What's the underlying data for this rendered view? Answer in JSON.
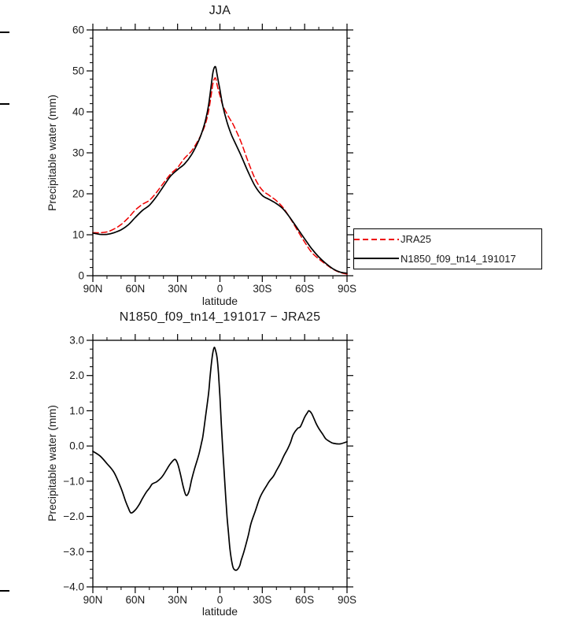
{
  "figure": {
    "background": "#ffffff",
    "text_color": "#1a1a1a",
    "axis_color": "#000000"
  },
  "chart_data": [
    {
      "type": "line",
      "title": "JJA",
      "xlabel": "latitude",
      "ylabel": "Precipitable water (mm)",
      "xlim": [
        90,
        -90
      ],
      "ylim": [
        0,
        60
      ],
      "grid": false,
      "xtick_values": [
        90,
        60,
        30,
        0,
        -30,
        -60,
        -90
      ],
      "xtick_labels": [
        "90N",
        "60N",
        "30N",
        "0",
        "30S",
        "60S",
        "90S"
      ],
      "ytick_values": [
        0,
        10,
        20,
        30,
        40,
        50,
        60
      ],
      "ytick_labels": [
        "0",
        "10",
        "20",
        "30",
        "40",
        "50",
        "60"
      ],
      "x_minor_step": 10,
      "y_minor_step": 2,
      "legend": {
        "position": "outside-right",
        "entries": [
          "JRA25",
          "N1850_f09_tn14_191017"
        ]
      },
      "series": [
        {
          "name": "JRA25",
          "color": "#ee0000",
          "style": "dashed",
          "points": [
            [
              90,
              10.5
            ],
            [
              85,
              10.5
            ],
            [
              80,
              10.7
            ],
            [
              75,
              11.4
            ],
            [
              70,
              12.5
            ],
            [
              65,
              14.1
            ],
            [
              60,
              16.0
            ],
            [
              55,
              17.4
            ],
            [
              50,
              18.4
            ],
            [
              45,
              20.3
            ],
            [
              40,
              22.6
            ],
            [
              35,
              24.8
            ],
            [
              30,
              26.4
            ],
            [
              25,
              28.7
            ],
            [
              20,
              30.5
            ],
            [
              15,
              33.3
            ],
            [
              12,
              35.5
            ],
            [
              10,
              37.4
            ],
            [
              8,
              40.2
            ],
            [
              6,
              44.5
            ],
            [
              5,
              46.8
            ],
            [
              4,
              48.0
            ],
            [
              3,
              48.2
            ],
            [
              2,
              46.6
            ],
            [
              1,
              45.2
            ],
            [
              0,
              44.0
            ],
            [
              -2,
              41.6
            ],
            [
              -5,
              39.5
            ],
            [
              -8,
              37.7
            ],
            [
              -10,
              36.5
            ],
            [
              -15,
              32.6
            ],
            [
              -20,
              27.8
            ],
            [
              -25,
              23.6
            ],
            [
              -30,
              20.9
            ],
            [
              -35,
              19.6
            ],
            [
              -40,
              18.3
            ],
            [
              -45,
              16.5
            ],
            [
              -50,
              13.9
            ],
            [
              -55,
              11.0
            ],
            [
              -60,
              8.2
            ],
            [
              -65,
              5.7
            ],
            [
              -70,
              4.1
            ],
            [
              -75,
              2.8
            ],
            [
              -80,
              1.6
            ],
            [
              -85,
              0.8
            ],
            [
              -90,
              0.4
            ]
          ]
        },
        {
          "name": "N1850_f09_tn14_191017",
          "color": "#000000",
          "style": "solid",
          "points": [
            [
              90,
              10.4
            ],
            [
              85,
              10.1
            ],
            [
              80,
              10.1
            ],
            [
              75,
              10.5
            ],
            [
              70,
              11.2
            ],
            [
              65,
              12.4
            ],
            [
              60,
              14.2
            ],
            [
              55,
              15.9
            ],
            [
              50,
              17.2
            ],
            [
              45,
              19.3
            ],
            [
              40,
              21.8
            ],
            [
              35,
              24.3
            ],
            [
              30,
              25.9
            ],
            [
              25,
              27.3
            ],
            [
              20,
              29.6
            ],
            [
              15,
              33.0
            ],
            [
              12,
              35.8
            ],
            [
              10,
              38.3
            ],
            [
              8,
              41.7
            ],
            [
              6,
              46.9
            ],
            [
              5,
              49.5
            ],
            [
              4,
              50.8
            ],
            [
              3,
              50.9
            ],
            [
              2,
              49.1
            ],
            [
              1,
              47.2
            ],
            [
              0,
              45.4
            ],
            [
              -2,
              41.5
            ],
            [
              -5,
              37.5
            ],
            [
              -8,
              34.5
            ],
            [
              -10,
              33.0
            ],
            [
              -15,
              29.3
            ],
            [
              -20,
              25.3
            ],
            [
              -25,
              21.8
            ],
            [
              -30,
              19.6
            ],
            [
              -35,
              18.6
            ],
            [
              -40,
              17.6
            ],
            [
              -45,
              16.2
            ],
            [
              -50,
              14.0
            ],
            [
              -55,
              11.5
            ],
            [
              -60,
              9.0
            ],
            [
              -65,
              6.6
            ],
            [
              -70,
              4.6
            ],
            [
              -75,
              3.0
            ],
            [
              -80,
              1.7
            ],
            [
              -85,
              0.9
            ],
            [
              -90,
              0.6
            ]
          ]
        }
      ]
    },
    {
      "type": "line",
      "title": "N1850_f09_tn14_191017 − JRA25",
      "xlabel": "latitude",
      "ylabel": "Precipitable water (mm)",
      "xlim": [
        90,
        -90
      ],
      "ylim": [
        -4.0,
        3.0
      ],
      "grid": false,
      "xtick_values": [
        90,
        60,
        30,
        0,
        -30,
        -60,
        -90
      ],
      "xtick_labels": [
        "90N",
        "60N",
        "30N",
        "0",
        "30S",
        "60S",
        "90S"
      ],
      "ytick_values": [
        -4,
        -3,
        -2,
        -1,
        0,
        1,
        2,
        3
      ],
      "ytick_labels": [
        "−4.0",
        "−3.0",
        "−2.0",
        "−1.0",
        "0.0",
        "1.0",
        "2.0",
        "3.0"
      ],
      "x_minor_step": 10,
      "y_minor_step": 0.25,
      "series": [
        {
          "name": "N1850_f09_tn14_191017 − JRA25",
          "color": "#000000",
          "style": "solid",
          "points": [
            [
              90,
              -0.15
            ],
            [
              85,
              -0.28
            ],
            [
              80,
              -0.5
            ],
            [
              75,
              -0.75
            ],
            [
              70,
              -1.2
            ],
            [
              67,
              -1.55
            ],
            [
              65,
              -1.75
            ],
            [
              63,
              -1.9
            ],
            [
              60,
              -1.82
            ],
            [
              57,
              -1.65
            ],
            [
              55,
              -1.5
            ],
            [
              52,
              -1.3
            ],
            [
              50,
              -1.2
            ],
            [
              48,
              -1.08
            ],
            [
              45,
              -1.02
            ],
            [
              42,
              -0.92
            ],
            [
              40,
              -0.82
            ],
            [
              37,
              -0.62
            ],
            [
              35,
              -0.5
            ],
            [
              32,
              -0.38
            ],
            [
              30,
              -0.5
            ],
            [
              28,
              -0.8
            ],
            [
              26,
              -1.15
            ],
            [
              24,
              -1.4
            ],
            [
              22,
              -1.3
            ],
            [
              20,
              -0.95
            ],
            [
              18,
              -0.65
            ],
            [
              15,
              -0.25
            ],
            [
              13,
              0.1
            ],
            [
              12,
              0.3
            ],
            [
              10,
              0.9
            ],
            [
              8,
              1.5
            ],
            [
              7,
              1.95
            ],
            [
              6,
              2.35
            ],
            [
              5,
              2.65
            ],
            [
              4,
              2.8
            ],
            [
              3,
              2.7
            ],
            [
              2,
              2.5
            ],
            [
              1,
              2.05
            ],
            [
              0,
              1.4
            ],
            [
              -1,
              0.6
            ],
            [
              -2,
              -0.1
            ],
            [
              -3,
              -0.75
            ],
            [
              -4,
              -1.4
            ],
            [
              -5,
              -2.0
            ],
            [
              -6,
              -2.45
            ],
            [
              -7,
              -2.9
            ],
            [
              -8,
              -3.2
            ],
            [
              -9,
              -3.4
            ],
            [
              -10,
              -3.5
            ],
            [
              -12,
              -3.52
            ],
            [
              -14,
              -3.4
            ],
            [
              -15,
              -3.25
            ],
            [
              -17,
              -3.0
            ],
            [
              -20,
              -2.55
            ],
            [
              -22,
              -2.2
            ],
            [
              -25,
              -1.85
            ],
            [
              -28,
              -1.5
            ],
            [
              -30,
              -1.33
            ],
            [
              -33,
              -1.13
            ],
            [
              -35,
              -1.0
            ],
            [
              -38,
              -0.85
            ],
            [
              -40,
              -0.7
            ],
            [
              -43,
              -0.48
            ],
            [
              -45,
              -0.3
            ],
            [
              -48,
              -0.08
            ],
            [
              -50,
              0.1
            ],
            [
              -52,
              0.33
            ],
            [
              -55,
              0.5
            ],
            [
              -57,
              0.55
            ],
            [
              -60,
              0.82
            ],
            [
              -62,
              0.95
            ],
            [
              -63,
              1.0
            ],
            [
              -65,
              0.92
            ],
            [
              -68,
              0.65
            ],
            [
              -70,
              0.5
            ],
            [
              -73,
              0.32
            ],
            [
              -75,
              0.2
            ],
            [
              -78,
              0.12
            ],
            [
              -80,
              0.08
            ],
            [
              -85,
              0.06
            ],
            [
              -90,
              0.12
            ]
          ]
        }
      ]
    }
  ]
}
